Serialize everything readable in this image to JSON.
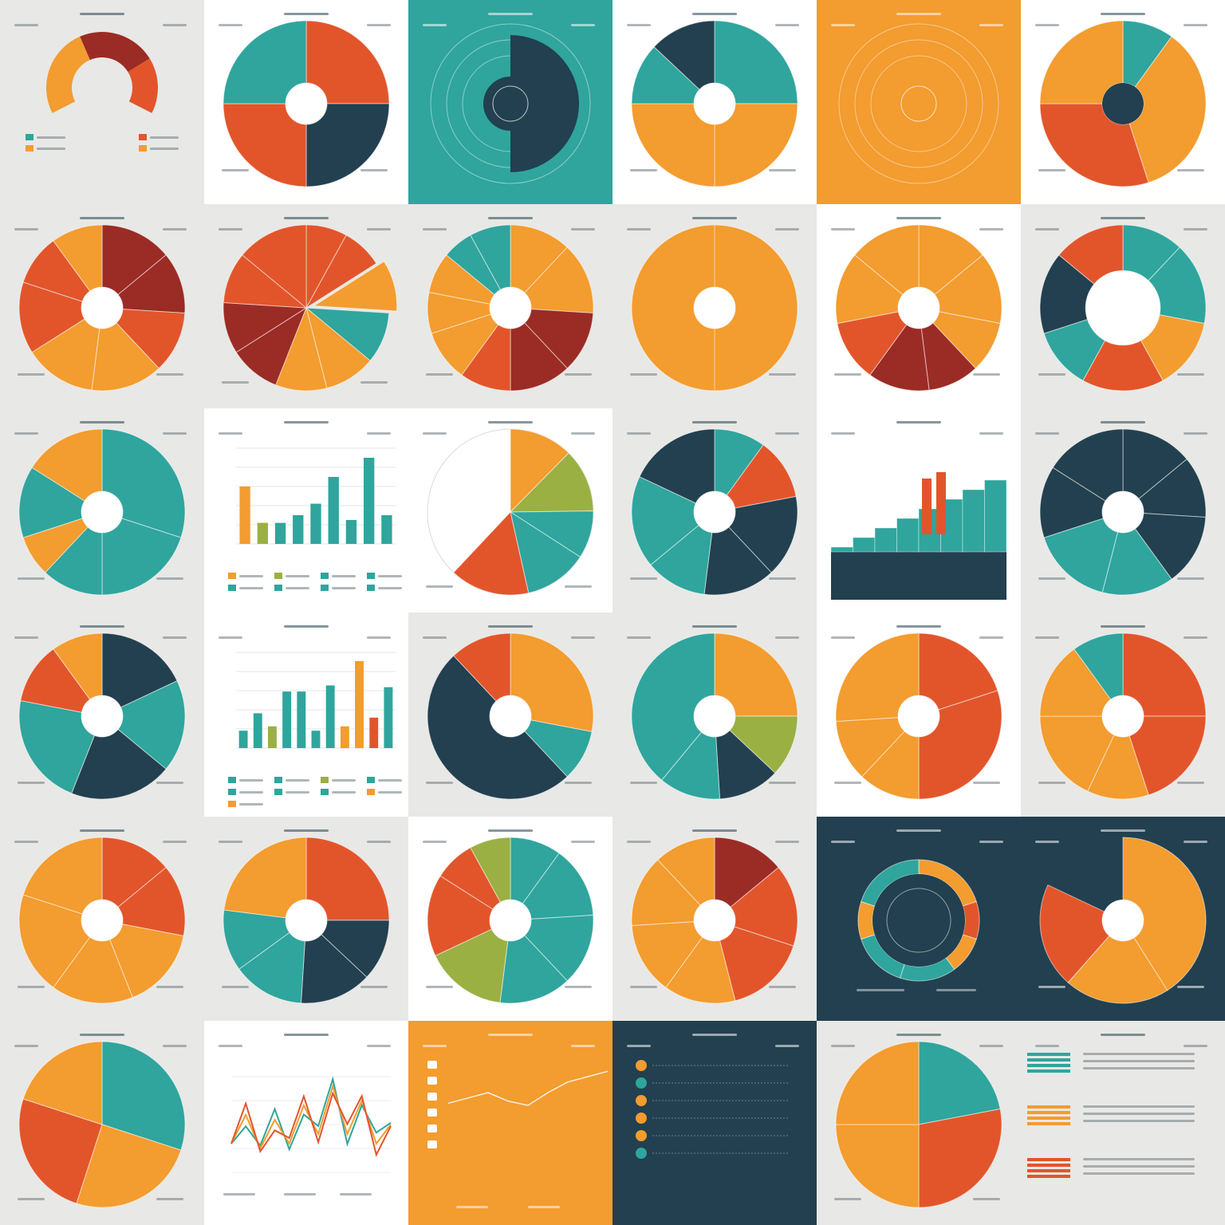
{
  "palette": {
    "teal": "#2fa59d",
    "orange": "#f39c2f",
    "red_orange": "#e2552b",
    "dark_red": "#9b2b25",
    "navy": "#22404f",
    "olive": "#9bb043",
    "white": "#ffffff",
    "light_bg": "#f4f4f2",
    "grey_bg": "#e8e8e6"
  },
  "tiles": [
    {
      "id": "r1c1",
      "type": "arc",
      "bg": "grey_bg",
      "title": "",
      "slices": [
        0.4,
        0.35,
        0.25
      ],
      "colors": [
        "orange",
        "dark_red",
        "red_orange"
      ],
      "legend": 4
    },
    {
      "id": "r1c2",
      "type": "donut",
      "bg": "white",
      "title": "",
      "slices": [
        25,
        25,
        25,
        25
      ],
      "colors": [
        "red_orange",
        "navy",
        "red_orange",
        "teal"
      ],
      "legend": 0
    },
    {
      "id": "r1c3",
      "type": "radial",
      "bg": "teal",
      "title": "",
      "center_text": "",
      "slices": [
        50,
        50
      ],
      "colors": [
        "navy",
        "teal"
      ],
      "legend": 0
    },
    {
      "id": "r1c4",
      "type": "donut",
      "bg": "white",
      "title": "",
      "slices": [
        25,
        25,
        25,
        12,
        13
      ],
      "colors": [
        "teal",
        "orange",
        "orange",
        "teal",
        "navy"
      ],
      "legend": 0
    },
    {
      "id": "r1c5",
      "type": "radial",
      "bg": "orange",
      "title": "",
      "center_text": "",
      "slices": [
        100
      ],
      "colors": [
        "orange"
      ],
      "legend": 0
    },
    {
      "id": "r1c6",
      "type": "donut",
      "bg": "white",
      "title": "",
      "slices": [
        10,
        35,
        30,
        25
      ],
      "colors": [
        "teal",
        "orange",
        "red_orange",
        "orange"
      ],
      "inner_color": "navy",
      "legend": 0
    },
    {
      "id": "r2c1",
      "type": "donut",
      "bg": "grey_bg",
      "title": "",
      "slices": [
        14,
        12,
        12,
        14,
        14,
        14,
        10,
        10
      ],
      "colors": [
        "dark_red",
        "dark_red",
        "red_orange",
        "orange",
        "orange",
        "red_orange",
        "red_orange",
        "orange"
      ],
      "legend": 0
    },
    {
      "id": "r2c2",
      "type": "pie",
      "bg": "grey_bg",
      "title": "",
      "slices": [
        8,
        8,
        10,
        10,
        10,
        10,
        10,
        10,
        10,
        14
      ],
      "colors": [
        "red_orange",
        "red_orange",
        "orange",
        "teal",
        "orange",
        "orange",
        "dark_red",
        "dark_red",
        "red_orange",
        "red_orange"
      ],
      "explode": 2,
      "legend": 0
    },
    {
      "id": "r2c3",
      "type": "donut",
      "bg": "grey_bg",
      "title": "",
      "slices": [
        12,
        14,
        12,
        12,
        10,
        10,
        8,
        8,
        6,
        8
      ],
      "colors": [
        "orange",
        "orange",
        "dark_red",
        "dark_red",
        "red_orange",
        "orange",
        "orange",
        "orange",
        "teal",
        "teal"
      ],
      "legend": 0
    },
    {
      "id": "r2c4",
      "type": "donut",
      "bg": "grey_bg",
      "title": "",
      "slices": [
        100
      ],
      "colors": [
        "orange"
      ],
      "legend": 0
    },
    {
      "id": "r2c5",
      "type": "donut",
      "bg": "white",
      "title": "",
      "slices": [
        14,
        14,
        10,
        10,
        12,
        12,
        14,
        14
      ],
      "colors": [
        "orange",
        "orange",
        "orange",
        "dark_red",
        "dark_red",
        "red_orange",
        "orange",
        "orange"
      ],
      "legend": 0
    },
    {
      "id": "r2c6",
      "type": "donut",
      "bg": "grey_bg",
      "title": "",
      "slices": [
        12,
        16,
        14,
        16,
        12,
        16,
        14
      ],
      "colors": [
        "teal",
        "teal",
        "orange",
        "red_orange",
        "teal",
        "navy",
        "red_orange"
      ],
      "inner": 0.45,
      "legend": 0
    },
    {
      "id": "r3c1",
      "type": "donut",
      "bg": "grey_bg",
      "title": "",
      "slices": [
        30,
        20,
        12,
        8,
        14,
        16
      ],
      "colors": [
        "teal",
        "teal",
        "teal",
        "orange",
        "teal",
        "orange"
      ],
      "legend": 0
    },
    {
      "id": "r3c2",
      "type": "bar",
      "bg": "white",
      "title": "",
      "values": [
        60,
        22,
        22,
        30,
        42,
        70,
        25,
        90,
        30
      ],
      "colors": [
        "orange",
        "olive",
        "teal",
        "teal",
        "teal",
        "teal",
        "teal",
        "teal",
        "teal"
      ],
      "ylim": [
        0,
        100
      ],
      "legend": 8
    },
    {
      "id": "r3c3",
      "type": "pie",
      "bg": "white",
      "title": "",
      "slices": [
        20,
        20,
        15,
        20,
        25
      ],
      "colors": [
        "orange",
        "olive",
        "teal",
        "teal",
        "red_orange"
      ],
      "partial": 0.62,
      "legend": 0
    },
    {
      "id": "r3c4",
      "type": "donut",
      "bg": "grey_bg",
      "title": "",
      "slices": [
        10,
        12,
        16,
        14,
        12,
        18,
        18
      ],
      "colors": [
        "teal",
        "red_orange",
        "navy",
        "navy",
        "teal",
        "teal",
        "navy"
      ],
      "legend": 0
    },
    {
      "id": "r3c5",
      "type": "stepbar",
      "bg": "white",
      "title": "",
      "values": [
        3,
        4,
        5,
        6,
        7,
        8,
        9,
        10
      ],
      "legend": 0
    },
    {
      "id": "r3c6",
      "type": "donut",
      "bg": "grey_bg",
      "title": "",
      "slices": [
        14,
        12,
        14,
        14,
        16,
        14,
        16
      ],
      "colors": [
        "navy",
        "navy",
        "navy",
        "teal",
        "teal",
        "navy",
        "navy"
      ],
      "legend": 0
    },
    {
      "id": "r4c1",
      "type": "donut",
      "bg": "grey_bg",
      "title": "",
      "slices": [
        18,
        18,
        20,
        22,
        12,
        10
      ],
      "colors": [
        "navy",
        "teal",
        "navy",
        "teal",
        "red_orange",
        "orange"
      ],
      "legend": 0
    },
    {
      "id": "r4c2",
      "type": "bar",
      "bg": "white",
      "title": "",
      "values": [
        20,
        40,
        25,
        65,
        65,
        20,
        72,
        25,
        100,
        35,
        70
      ],
      "colors": [
        "teal",
        "teal",
        "olive",
        "teal",
        "teal",
        "teal",
        "teal",
        "orange",
        "orange",
        "red_orange",
        "teal"
      ],
      "ylim": [
        0,
        110
      ],
      "legend": 9
    },
    {
      "id": "r4c3",
      "type": "donut",
      "bg": "grey_bg",
      "title": "",
      "slices": [
        28,
        10,
        50,
        12
      ],
      "colors": [
        "orange",
        "teal",
        "navy",
        "red_orange"
      ],
      "legend": 0
    },
    {
      "id": "r4c4",
      "type": "donut",
      "bg": "grey_bg",
      "title": "",
      "slices": [
        25,
        12,
        12,
        12,
        39
      ],
      "colors": [
        "orange",
        "olive",
        "navy",
        "teal",
        "teal"
      ],
      "legend": 0
    },
    {
      "id": "r4c5",
      "type": "donut",
      "bg": "white",
      "title": "",
      "slices": [
        20,
        30,
        12,
        12,
        26
      ],
      "colors": [
        "red_orange",
        "red_orange",
        "orange",
        "orange",
        "orange"
      ],
      "legend": 0
    },
    {
      "id": "r4c6",
      "type": "donut",
      "bg": "grey_bg",
      "title": "",
      "slices": [
        25,
        20,
        12,
        18,
        15,
        10
      ],
      "colors": [
        "red_orange",
        "red_orange",
        "orange",
        "orange",
        "orange",
        "teal"
      ],
      "legend": 0
    },
    {
      "id": "r5c1",
      "type": "donut",
      "bg": "grey_bg",
      "title": "",
      "slices": [
        14,
        14,
        16,
        16,
        20,
        20
      ],
      "colors": [
        "red_orange",
        "red_orange",
        "orange",
        "orange",
        "orange",
        "orange"
      ],
      "legend": 0
    },
    {
      "id": "r5c2",
      "type": "donut",
      "bg": "grey_bg",
      "title": "",
      "slices": [
        25,
        12,
        14,
        14,
        12,
        23
      ],
      "colors": [
        "red_orange",
        "navy",
        "navy",
        "teal",
        "teal",
        "orange"
      ],
      "legend": 0
    },
    {
      "id": "r5c3",
      "type": "donut",
      "bg": "white",
      "title": "",
      "slices": [
        10,
        14,
        14,
        14,
        16,
        16,
        8,
        8
      ],
      "colors": [
        "teal",
        "teal",
        "teal",
        "teal",
        "olive",
        "red_orange",
        "red_orange",
        "olive"
      ],
      "legend": 0
    },
    {
      "id": "r5c4",
      "type": "donut",
      "bg": "grey_bg",
      "title": "",
      "slices": [
        14,
        16,
        16,
        14,
        14,
        14,
        12
      ],
      "colors": [
        "dark_red",
        "red_orange",
        "red_orange",
        "orange",
        "orange",
        "orange",
        "orange"
      ],
      "legend": 0
    },
    {
      "id": "r5c5",
      "type": "ring",
      "bg": "navy",
      "title": "",
      "slices": [
        20,
        10,
        10,
        15,
        15,
        10,
        20
      ],
      "colors": [
        "orange",
        "red_orange",
        "orange",
        "teal",
        "teal",
        "orange",
        "teal"
      ],
      "legend": 0
    },
    {
      "id": "r5c6",
      "type": "donut",
      "bg": "navy",
      "title": "",
      "slices": [
        50,
        25,
        25
      ],
      "colors": [
        "orange",
        "orange",
        "red_orange"
      ],
      "partial": 0.82,
      "legend": 0
    },
    {
      "id": "r6c1",
      "type": "pie",
      "bg": "grey_bg",
      "title": "",
      "slices": [
        30,
        25,
        25,
        20
      ],
      "colors": [
        "teal",
        "orange",
        "red_orange",
        "orange"
      ],
      "legend": 0
    },
    {
      "id": "r6c2",
      "type": "line",
      "bg": "white",
      "title": "",
      "values": [
        30,
        60,
        25,
        55,
        30,
        70,
        40,
        90,
        40,
        75,
        30,
        50
      ],
      "colors": [
        "teal",
        "orange",
        "red_orange"
      ],
      "legend": 0
    },
    {
      "id": "r6c3",
      "type": "linesimple",
      "bg": "orange",
      "title": "",
      "values": [
        20,
        25,
        30,
        22,
        18,
        30,
        40,
        45,
        50
      ],
      "legend": 0
    },
    {
      "id": "r6c4",
      "type": "list",
      "bg": "navy",
      "title": "",
      "rows": 6,
      "legend": 0
    },
    {
      "id": "r6c5",
      "type": "pie",
      "bg": "grey_bg",
      "title": "",
      "slices": [
        22,
        28,
        25,
        25
      ],
      "colors": [
        "teal",
        "red_orange",
        "orange",
        "orange"
      ],
      "legend": 0
    },
    {
      "id": "r6c6",
      "type": "legendbars",
      "bg": "grey_bg",
      "title": "",
      "groups": 3,
      "colors": [
        "teal",
        "orange",
        "red_orange"
      ],
      "legend": 0
    }
  ],
  "chart_data": [
    {
      "type": "pie",
      "title": "",
      "values": [
        0.4,
        0.35,
        0.25
      ]
    },
    {
      "type": "pie",
      "title": "",
      "values": [
        25,
        25,
        25,
        25
      ]
    },
    {
      "type": "pie",
      "title": "",
      "values": [
        50,
        50
      ]
    },
    {
      "type": "pie",
      "title": "",
      "values": [
        25,
        25,
        25,
        12,
        13
      ]
    },
    {
      "type": "pie",
      "title": "",
      "values": [
        100
      ]
    },
    {
      "type": "pie",
      "title": "",
      "values": [
        10,
        35,
        30,
        25
      ]
    },
    {
      "type": "pie",
      "title": "",
      "values": [
        14,
        12,
        12,
        14,
        14,
        14,
        10,
        10
      ]
    },
    {
      "type": "pie",
      "title": "",
      "values": [
        8,
        8,
        10,
        10,
        10,
        10,
        10,
        10,
        10,
        14
      ]
    },
    {
      "type": "pie",
      "title": "",
      "values": [
        12,
        14,
        12,
        12,
        10,
        10,
        8,
        8,
        6,
        8
      ]
    },
    {
      "type": "pie",
      "title": "",
      "values": [
        100
      ]
    },
    {
      "type": "pie",
      "title": "",
      "values": [
        14,
        14,
        10,
        10,
        12,
        12,
        14,
        14
      ]
    },
    {
      "type": "pie",
      "title": "",
      "values": [
        12,
        16,
        14,
        16,
        12,
        16,
        14
      ]
    },
    {
      "type": "pie",
      "title": "",
      "values": [
        30,
        20,
        12,
        8,
        14,
        16
      ]
    },
    {
      "type": "bar",
      "title": "",
      "values": [
        60,
        22,
        22,
        30,
        42,
        70,
        25,
        90,
        30
      ],
      "ylim": [
        0,
        100
      ]
    },
    {
      "type": "pie",
      "title": "",
      "values": [
        20,
        20,
        15,
        20,
        25
      ]
    },
    {
      "type": "pie",
      "title": "",
      "values": [
        10,
        12,
        16,
        14,
        12,
        18,
        18
      ]
    },
    {
      "type": "bar",
      "title": "",
      "values": [
        3,
        4,
        5,
        6,
        7,
        8,
        9,
        10
      ]
    },
    {
      "type": "pie",
      "title": "",
      "values": [
        14,
        12,
        14,
        14,
        16,
        14,
        16
      ]
    },
    {
      "type": "pie",
      "title": "",
      "values": [
        18,
        18,
        20,
        22,
        12,
        10
      ]
    },
    {
      "type": "bar",
      "title": "",
      "values": [
        20,
        40,
        25,
        65,
        65,
        20,
        72,
        25,
        100,
        35,
        70
      ],
      "ylim": [
        0,
        110
      ]
    },
    {
      "type": "pie",
      "title": "",
      "values": [
        28,
        10,
        50,
        12
      ]
    },
    {
      "type": "pie",
      "title": "",
      "values": [
        25,
        12,
        12,
        12,
        39
      ]
    },
    {
      "type": "pie",
      "title": "",
      "values": [
        20,
        30,
        12,
        12,
        26
      ]
    },
    {
      "type": "pie",
      "title": "",
      "values": [
        25,
        20,
        12,
        18,
        15,
        10
      ]
    },
    {
      "type": "pie",
      "title": "",
      "values": [
        14,
        14,
        16,
        16,
        20,
        20
      ]
    },
    {
      "type": "pie",
      "title": "",
      "values": [
        25,
        12,
        14,
        14,
        12,
        23
      ]
    },
    {
      "type": "pie",
      "title": "",
      "values": [
        10,
        14,
        14,
        14,
        16,
        16,
        8,
        8
      ]
    },
    {
      "type": "pie",
      "title": "",
      "values": [
        14,
        16,
        16,
        14,
        14,
        14,
        12
      ]
    },
    {
      "type": "pie",
      "title": "",
      "values": [
        20,
        10,
        10,
        15,
        15,
        10,
        20
      ]
    },
    {
      "type": "pie",
      "title": "",
      "values": [
        50,
        25,
        25
      ]
    },
    {
      "type": "pie",
      "title": "",
      "values": [
        30,
        25,
        25,
        20
      ]
    },
    {
      "type": "line",
      "title": "",
      "values": [
        30,
        60,
        25,
        55,
        30,
        70,
        40,
        90,
        40,
        75,
        30,
        50
      ]
    },
    {
      "type": "line",
      "title": "",
      "values": [
        20,
        25,
        30,
        22,
        18,
        30,
        40,
        45,
        50
      ]
    },
    {
      "type": "table",
      "title": "",
      "values": []
    },
    {
      "type": "pie",
      "title": "",
      "values": [
        22,
        28,
        25,
        25
      ]
    },
    {
      "type": "table",
      "title": "",
      "values": []
    }
  ]
}
